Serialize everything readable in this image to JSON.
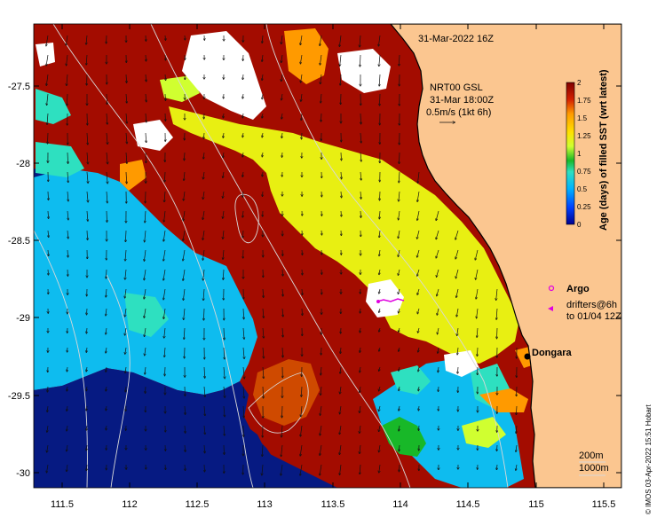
{
  "map": {
    "title_time": "31-Mar-2022 16Z",
    "current_label": {
      "line1": "NRT00 GSL",
      "line2": "31-Mar 18:00Z",
      "line3": "0.5m/s (1kt 6h)"
    },
    "x_ticks": [
      "111.5",
      "112",
      "112.5",
      "113",
      "113.5",
      "114",
      "114.5",
      "115",
      "115.5"
    ],
    "y_ticks": [
      "-27.5",
      "-28",
      "-28.5",
      "-29",
      "-29.5",
      "-30"
    ],
    "place_label": "Dongara",
    "legend": {
      "argo": "Argo",
      "drifters_line1": "drifters@6h",
      "drifters_line2": "to 01/04 12Z"
    },
    "contours": {
      "c200": "200m",
      "c1000": "1000m"
    },
    "credit": "© IMOS 03-Apr-2022 15:51 Hobart"
  },
  "colorbar": {
    "label": "Age (days) of filled SST (wrt latest)",
    "ticks": [
      "2",
      "1.75",
      "1.5",
      "1.25",
      "1",
      "0.75",
      "0.5",
      "0.25",
      "0"
    ],
    "stops": [
      "#00008f",
      "#0040ff",
      "#00b2ff",
      "#2ee0c0",
      "#18b828",
      "#d0ff30",
      "#ffe000",
      "#ff9a00",
      "#d42000",
      "#800000"
    ]
  },
  "colors": {
    "land": "#fbc690",
    "deep_red": "#a30c00",
    "yellow": "#e8ef12",
    "light_blue": "#0ebcef",
    "navy": "#061a82",
    "white": "#ffffff"
  }
}
